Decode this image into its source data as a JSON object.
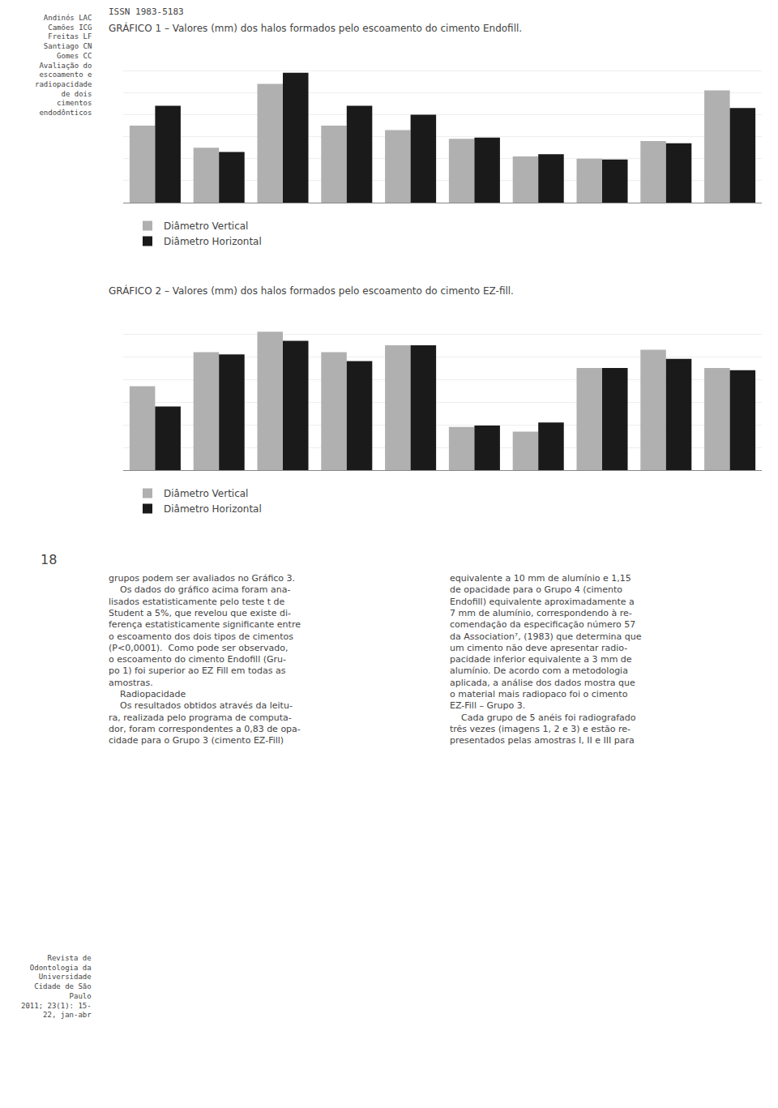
{
  "chart_data": [
    {
      "type": "bar",
      "title": "GRÁFICO 1 – Valores (mm) dos halos formados pelo escoamento do cimento Endofill.",
      "categories": [
        null,
        null,
        null,
        null,
        null,
        null,
        null,
        null,
        null,
        null
      ],
      "series": [
        {
          "name": "Diâmetro Vertical",
          "color": "#b0b0b0",
          "values": [
            17.5,
            12.5,
            27.0,
            17.5,
            16.5,
            14.5,
            10.5,
            10.0,
            14.0,
            25.5
          ]
        },
        {
          "name": "Diâmetro Horizontal",
          "color": "#1a1a1a",
          "values": [
            22.0,
            11.5,
            29.5,
            22.0,
            20.0,
            14.8,
            11.0,
            9.8,
            13.5,
            21.5
          ]
        }
      ],
      "ylim": [
        0,
        35
      ],
      "yticks": [
        0,
        5,
        10,
        15,
        20,
        25,
        30,
        35
      ],
      "grid": true,
      "tick_labels": false,
      "legend": "bottom left",
      "annotations": [
        [
          "ISSN 1983-5183"
        ],
        [
          "Andinós LAC",
          "Camões ICG",
          "Freitas LF",
          "Santiago CN",
          "Gomes CC",
          "Avaliação do",
          "escoamento e",
          "radiopacidade",
          "de dois",
          "cimentos",
          "endodônticos"
        ],
        [
          "18"
        ],
        [
          "Revista de",
          "Odontologia da",
          "Universidade",
          "Cidade de São",
          "Paulo",
          "2011; 23(1): 15-",
          "22, jan-abr"
        ]
      ]
    },
    {
      "type": "bar",
      "title": "GRÁFICO 2 – Valores (mm) dos halos formados pelo escoamento do cimento EZ-fill.",
      "categories": [
        null,
        null,
        null,
        null,
        null,
        null,
        null,
        null,
        null,
        null
      ],
      "series": [
        {
          "name": "Diâmetro Vertical",
          "color": "#b0b0b0",
          "values": [
            18.5,
            26.0,
            30.5,
            26.0,
            27.5,
            9.5,
            8.5,
            22.5,
            26.5,
            22.5
          ]
        },
        {
          "name": "Diâmetro Horizontal",
          "color": "#1a1a1a",
          "values": [
            14.0,
            25.5,
            28.5,
            24.0,
            27.5,
            9.8,
            10.5,
            22.5,
            24.5,
            22.0
          ]
        }
      ],
      "ylim": [
        0,
        35
      ],
      "yticks": [
        0,
        5,
        10,
        15,
        20,
        25,
        30,
        35
      ],
      "grid": true,
      "tick_labels": false,
      "legend": "bottom left",
      "annotations": [
        [
          "grupos podem ser avaliados no Gráfico 3.",
          "    Os dados do gráfico acima foram ana-",
          "lisados estatisticamente pelo teste t de",
          "Student a 5%, que revelou que existe di-",
          "ferença estatisticamente significante entre",
          "o escoamento dos dois tipos de cimentos",
          "(P<0,0001).  Como pode ser observado,",
          "o escoamento do cimento Endofill (Gru-",
          "po 1) foi superior ao EZ Fill em todas as",
          "amostras.",
          "    Radiopacidade",
          "    Os resultados obtidos através da leitu-",
          "ra, realizada pelo programa de computa-",
          "dor, foram correspondentes a 0,83 de opa-",
          "cidade para o Grupo 3 (cimento EZ-Fill)"
        ],
        [
          "equivalente a 10 mm de alumínio e 1,15",
          "de opacidade para o Grupo 4 (cimento",
          "Endofill) equivalente aproximadamente a",
          "7 mm de alumínio, correspondendo à re-",
          "comendação da especificação número 57",
          "da Association⁷, (1983) que determina que",
          "um cimento não deve apresentar radio-",
          "pacidade inferior equivalente a 3 mm de",
          "alumínio. De acordo com a metodologia",
          "aplicada, a análise dos dados mostra que",
          "o material mais radiopaco foi o cimento",
          "EZ-Fill – Grupo 3.",
          "    Cada grupo de 5 anéis foi radiografado",
          "três vezes (imagens 1, 2 e 3) e estão re-",
          "presentados pelas amostras I, II e III para"
        ]
      ]
    }
  ]
}
